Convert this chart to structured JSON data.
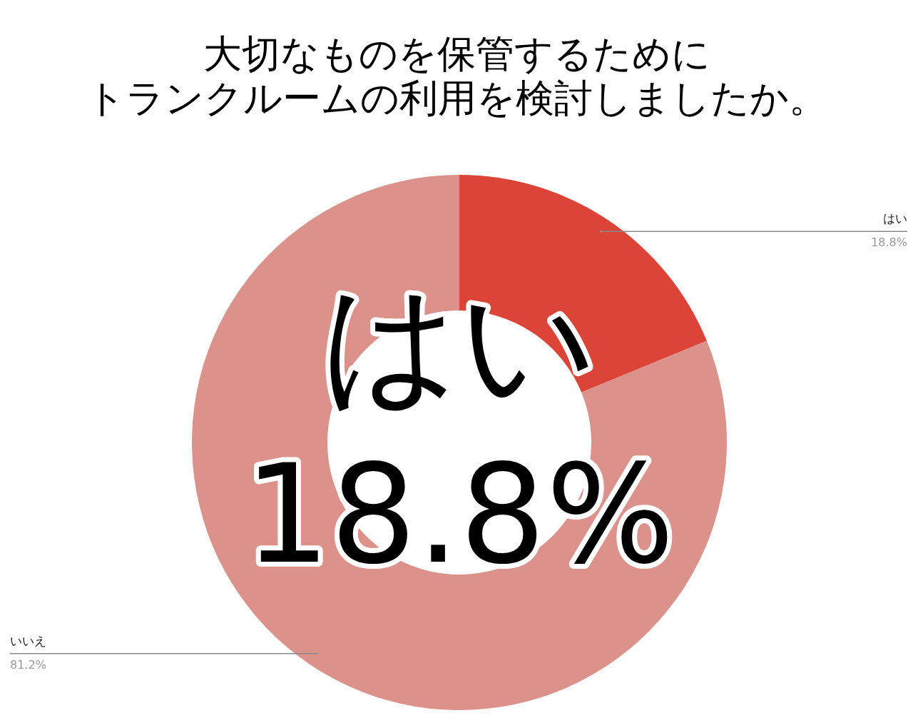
{
  "chart_data": {
    "type": "donut",
    "title": "大切なものを保管するために",
    "subtitle": "トランクルームの利用を検討しましたか。",
    "categories": [
      "はい",
      "いいえ"
    ],
    "values": [
      18.8,
      81.2
    ],
    "colors": [
      "#db4437",
      "#dc918a"
    ],
    "value_labels": [
      "18.8%",
      "81.2%"
    ],
    "annotations": [
      "はい",
      "18.8%"
    ]
  }
}
